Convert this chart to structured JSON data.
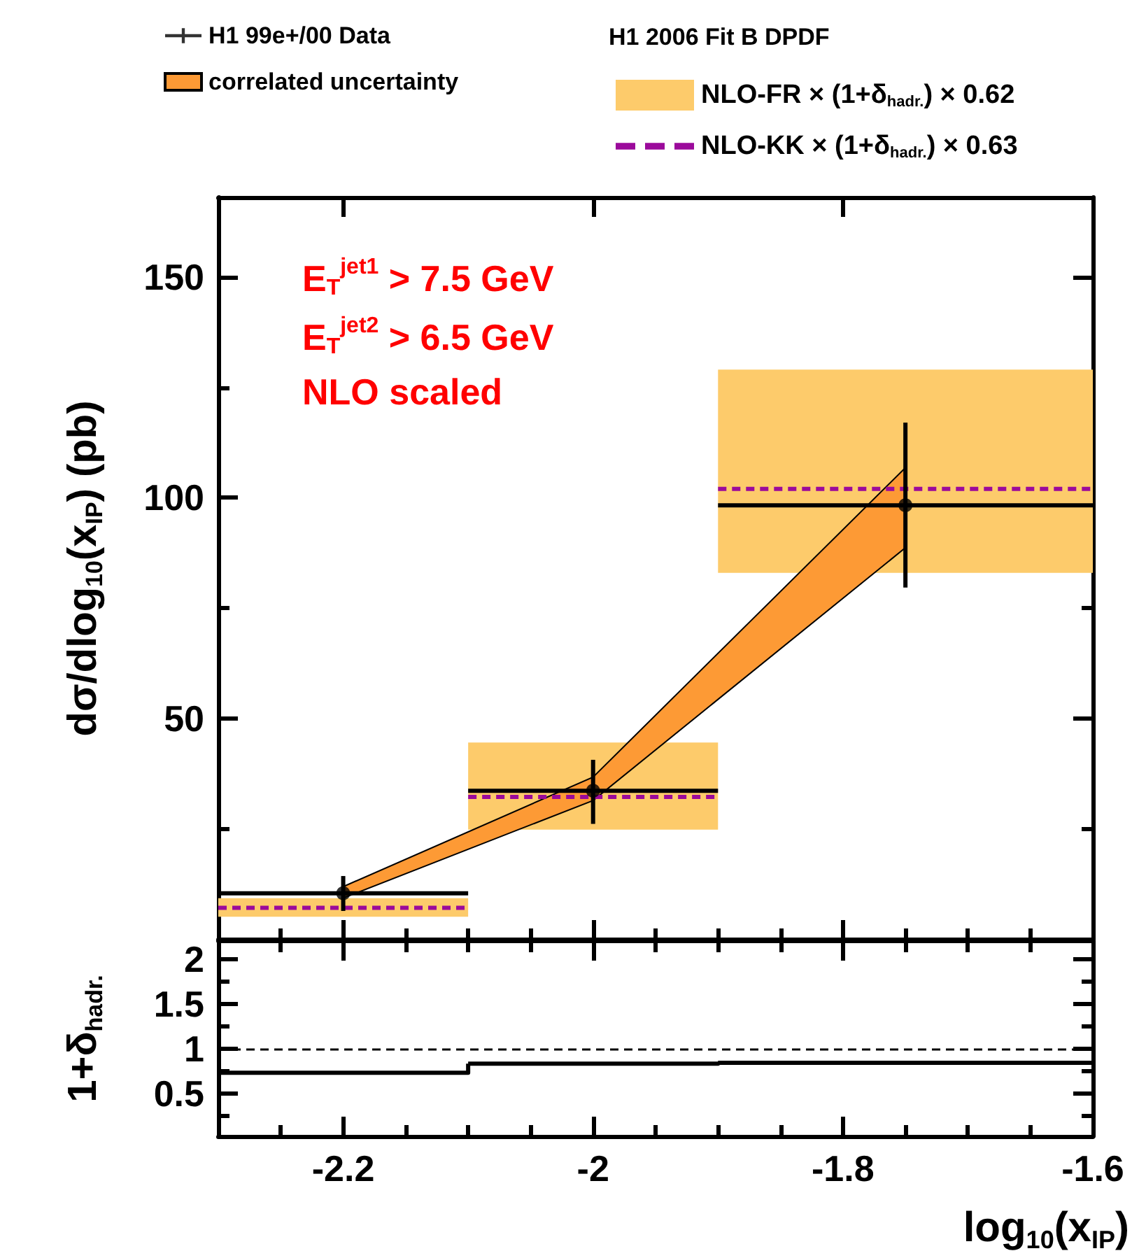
{
  "chart_data": [
    {
      "type": "scatter",
      "ylabel": "dσ/dlog$_{10}$(x$_{IP}$) (pb)",
      "legend_title": "H1 2006 Fit B DPDF",
      "annotations": [
        "E$_{T}$$^{jet1}$ > 7.5 GeV",
        "E$_{T}$$^{jet2}$ > 6.5 GeV",
        "NLO scaled"
      ],
      "xlim": [
        -2.3,
        -1.6
      ],
      "xticks": [
        {
          "value": -2.25,
          "label": null
        },
        -2.2,
        {
          "value": -2.15,
          "label": null
        },
        {
          "value": -2.1,
          "label": null
        },
        {
          "value": -2.05,
          "label": null
        },
        -2,
        {
          "value": -1.95,
          "label": null
        },
        {
          "value": -1.9,
          "label": null
        },
        {
          "value": -1.85,
          "label": null
        },
        -1.8,
        {
          "value": -1.75,
          "label": null
        },
        {
          "value": -1.7,
          "label": null
        },
        {
          "value": -1.65,
          "label": null
        }
      ],
      "ylim": [
        0,
        168
      ],
      "yticks": [
        {
          "value": 25,
          "label": null
        },
        50,
        {
          "value": 75,
          "label": null
        },
        100,
        {
          "value": 125,
          "label": null
        },
        150
      ],
      "tick_labels": "y",
      "legend": "top",
      "series": [
        {
          "name": "H1 99e+/00 Data",
          "marker": "circle",
          "color": "#000000",
          "x": [
            -2.2,
            -2,
            -1.75
          ],
          "values": [
            10.5,
            33.7,
            98.3
          ],
          "errors": [
            [
              6.5,
              14.4
            ],
            [
              26.2,
              40.7
            ],
            [
              79.7,
              117
            ]
          ],
          "xerrors": [
            [
              -2.3,
              -2.1
            ],
            [
              -2.1,
              -1.9
            ],
            [
              -1.9,
              -1.6
            ]
          ]
        },
        {
          "name": "correlated uncertainty",
          "type": "line",
          "color": "#fd9a35",
          "x": [
            -2.2,
            -2,
            -1.75
          ],
          "values": [
            null,
            null,
            null
          ],
          "lower": [
            9.4,
            31.5,
            88.7
          ],
          "upper": [
            12,
            36.8,
            106.8
          ]
        },
        {
          "name": "NLO-FR × (1+δ$_{hadr.}$) × 0.62",
          "type": "step",
          "color": "#fdcb6b",
          "x": [
            -2.3,
            -2.1,
            -1.9,
            -1.6
          ],
          "values": [
            null,
            null,
            null,
            null
          ],
          "lower": [
            5.2,
            24.9,
            83,
            83
          ],
          "upper": [
            9.4,
            44.6,
            129,
            129
          ]
        },
        {
          "name": "NLO-KK × (1+δ$_{hadr.}$) × 0.63",
          "type": "step",
          "line_style": "dashed",
          "color": "#9b0a9b",
          "x": [
            -2.3,
            -2.1,
            -1.9,
            -1.6
          ],
          "values": [
            7.2,
            32.3,
            102,
            102
          ]
        }
      ]
    },
    {
      "type": "step",
      "xlabel": "log$_{10}$(x$_{IP}$)",
      "ylabel": "1+δ$_{hadr.}$",
      "xlim": [
        -2.3,
        -1.6
      ],
      "xticks": [
        {
          "value": -2.25,
          "label": null
        },
        -2.2,
        {
          "value": -2.15,
          "label": null
        },
        {
          "value": -2.1,
          "label": null
        },
        {
          "value": -2.05,
          "label": null
        },
        -2,
        {
          "value": -1.95,
          "label": null
        },
        {
          "value": -1.9,
          "label": null
        },
        {
          "value": -1.85,
          "label": null
        },
        -1.8,
        {
          "value": -1.75,
          "label": null
        },
        {
          "value": -1.7,
          "label": null
        },
        {
          "value": -1.65,
          "label": null
        },
        -1.6
      ],
      "ylim": [
        0.02,
        2.2
      ],
      "yticks": [
        {
          "value": 0.25,
          "label": null
        },
        0.5,
        {
          "value": 0.75,
          "label": null
        },
        1,
        {
          "value": 1.25,
          "label": null
        },
        1.5,
        {
          "value": 1.75,
          "label": null
        },
        2
      ],
      "series": [
        {
          "color": "#000000",
          "x": [
            -2.3,
            -2.1,
            -1.9,
            -1.6
          ],
          "values": [
            0.73,
            0.83,
            0.84,
            0.84
          ]
        }
      ],
      "ref_lines": [
        {
          "axis": "y",
          "value": 1,
          "line_style": "dashed",
          "color": "#000000"
        }
      ]
    }
  ]
}
